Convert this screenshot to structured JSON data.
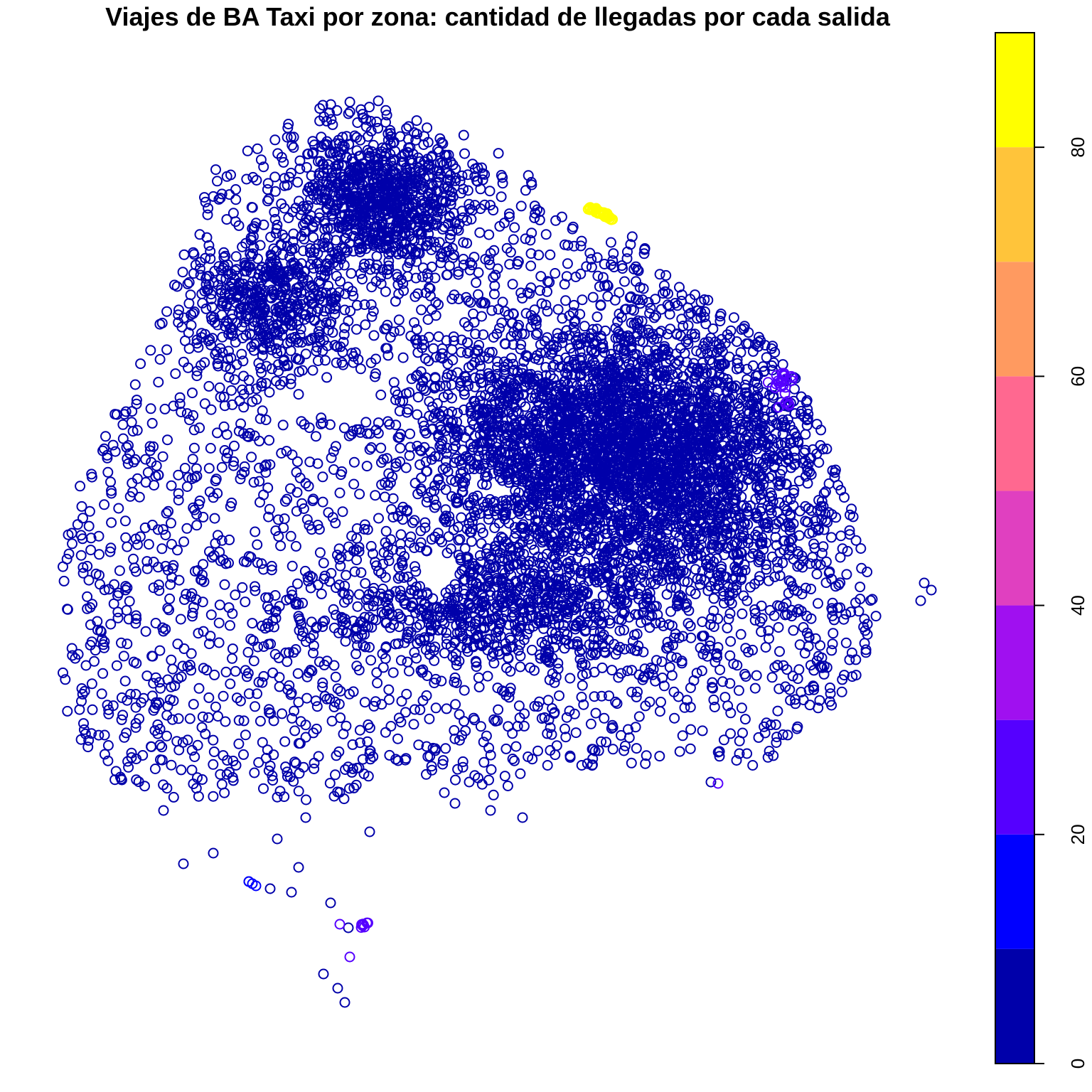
{
  "chart_data": {
    "type": "scatter",
    "title": "Viajes de BA Taxi por zona: cantidad de llegadas por cada salida",
    "xlabel": "",
    "ylabel": "",
    "marker": "open-circle",
    "color_scale": {
      "min": 0,
      "max": 90,
      "ticks": [
        0,
        20,
        40,
        60,
        80
      ],
      "bins": [
        {
          "from": 0,
          "to": 10,
          "color": "#0000AA"
        },
        {
          "from": 10,
          "to": 20,
          "color": "#0000FF"
        },
        {
          "from": 20,
          "to": 30,
          "color": "#5500FF"
        },
        {
          "from": 30,
          "to": 40,
          "color": "#A010F0"
        },
        {
          "from": 40,
          "to": 50,
          "color": "#E040C0"
        },
        {
          "from": 50,
          "to": 60,
          "color": "#FF6890"
        },
        {
          "from": 60,
          "to": 70,
          "color": "#FF9A60"
        },
        {
          "from": 70,
          "to": 80,
          "color": "#FFC43A"
        },
        {
          "from": 80,
          "to": 90,
          "color": "#FFFF00"
        }
      ]
    },
    "clusters": [
      {
        "name": "main-dense-body",
        "value": 3
      },
      {
        "name": "yellow-cluster",
        "value": 85
      },
      {
        "name": "east-purple-cluster",
        "value": 27
      },
      {
        "name": "south-purple-cluster",
        "value": 25
      },
      {
        "name": "south-east-purple-point",
        "value": 27
      }
    ],
    "grid": false,
    "legend": "right colorbar"
  }
}
